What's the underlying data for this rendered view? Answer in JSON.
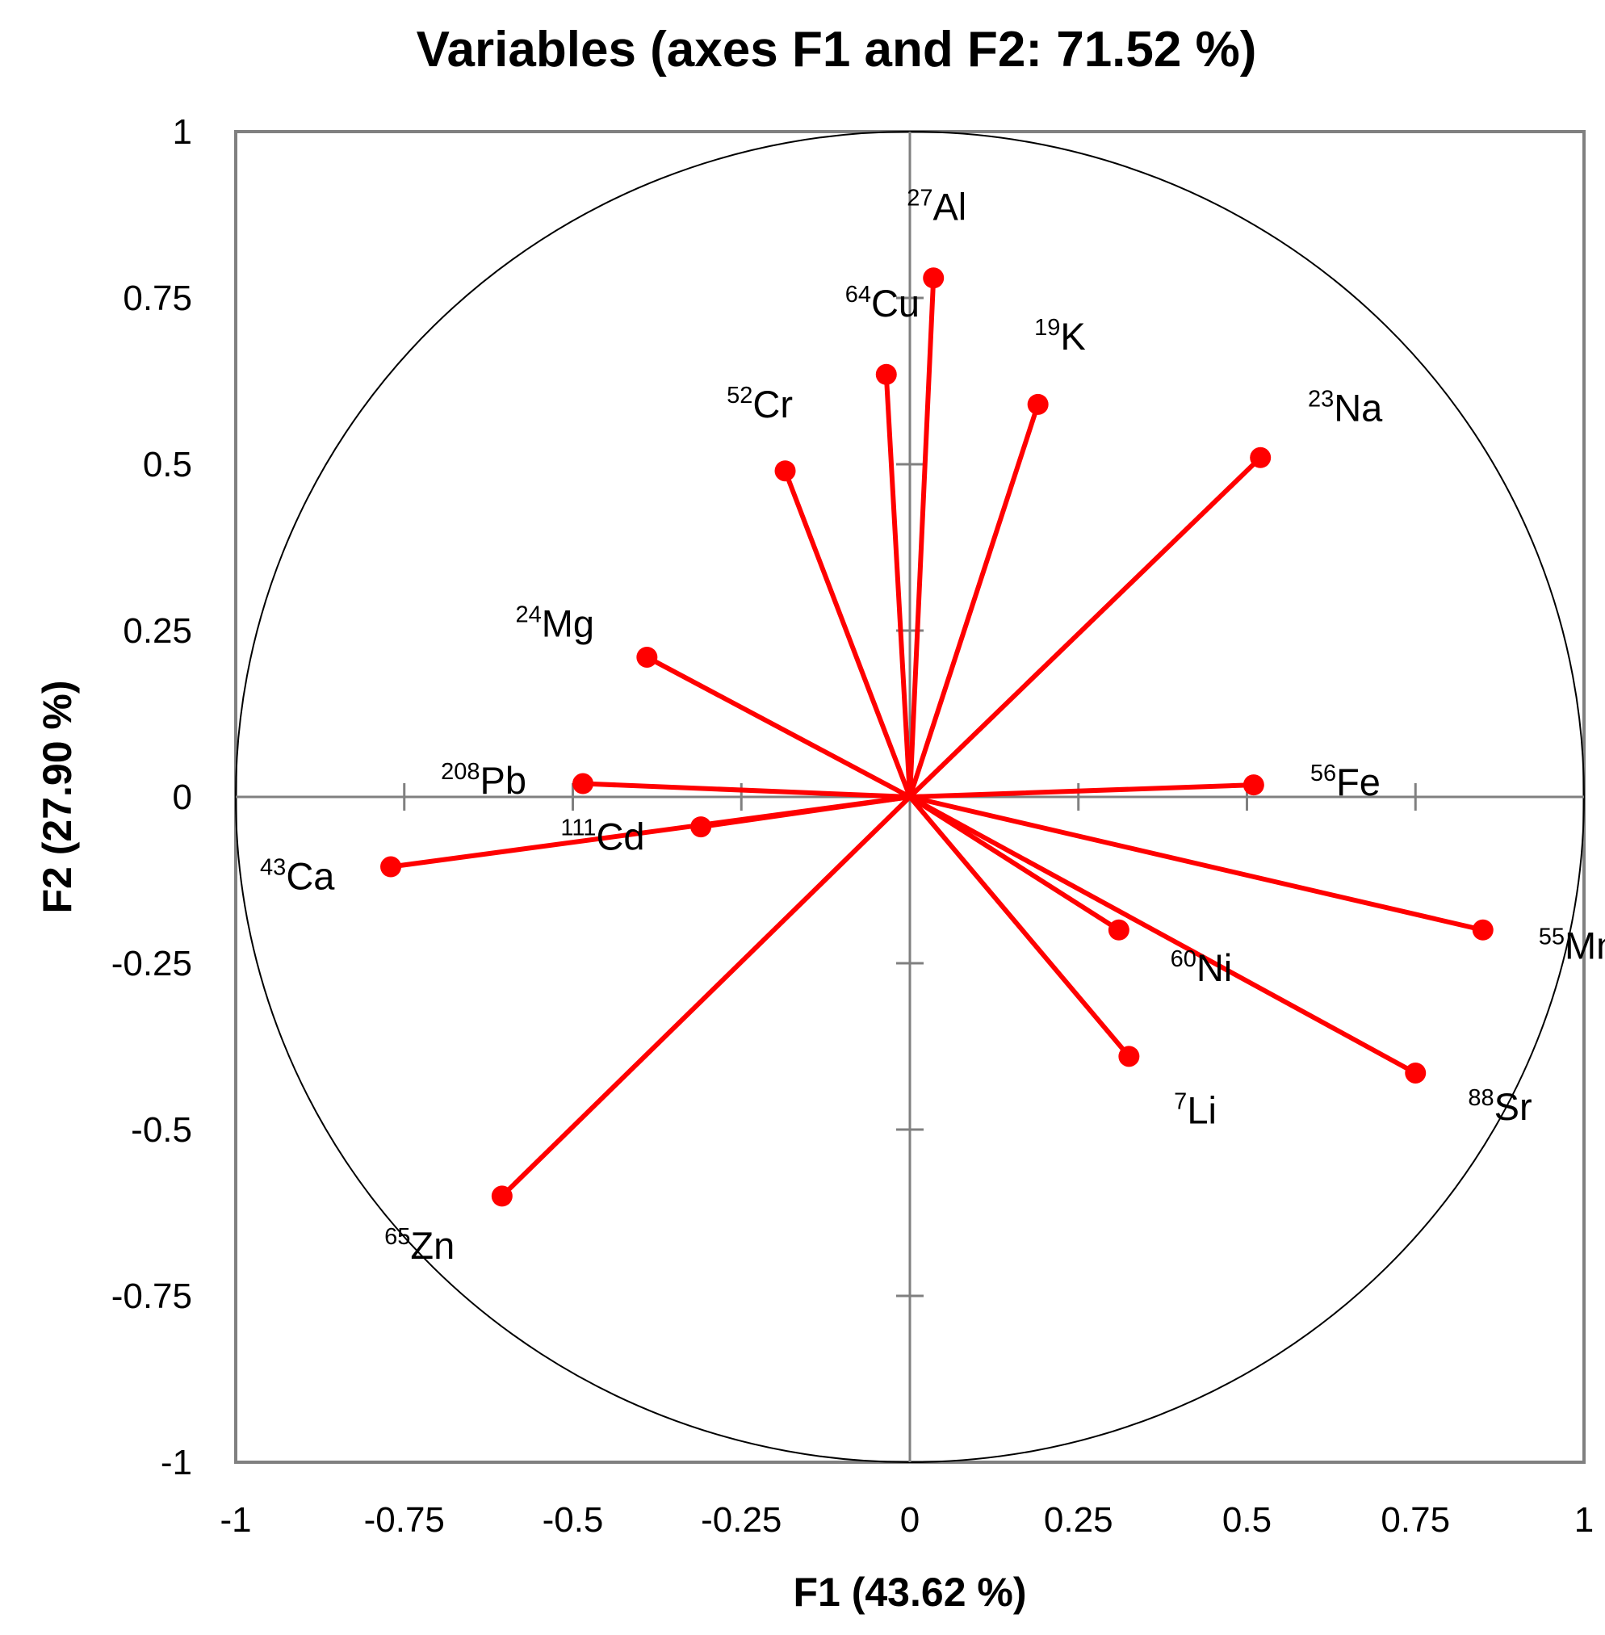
{
  "chart_data": {
    "type": "scatter",
    "subtype": "correlation-circle",
    "title": "Variables (axes F1 and F2: 71.52 %)",
    "xlabel": "F1 (43.62 %)",
    "ylabel": "F2 (27.90 %)",
    "xlim": [
      -1,
      1
    ],
    "ylim": [
      -1,
      1
    ],
    "x_ticks": [
      "-1",
      "-0.75",
      "-0.5",
      "-0.25",
      "0",
      "0.25",
      "0.5",
      "0.75",
      "1"
    ],
    "y_ticks": [
      "1",
      "0.75",
      "0.5",
      "0.25",
      "0",
      "-0.25",
      "-0.5",
      "-0.75",
      "-1"
    ],
    "unit_circle": true,
    "grid": false,
    "colors": {
      "vector": "#ff0000",
      "axes": "#808080",
      "circle": "#000000"
    },
    "points": [
      {
        "iso": "27",
        "el": "Al",
        "x": 0.035,
        "y": 0.78
      },
      {
        "iso": "64",
        "el": "Cu",
        "x": -0.035,
        "y": 0.635
      },
      {
        "iso": "19",
        "el": "K",
        "x": 0.19,
        "y": 0.59
      },
      {
        "iso": "23",
        "el": "Na",
        "x": 0.52,
        "y": 0.51
      },
      {
        "iso": "52",
        "el": "Cr",
        "x": -0.185,
        "y": 0.49
      },
      {
        "iso": "24",
        "el": "Mg",
        "x": -0.39,
        "y": 0.21
      },
      {
        "iso": "208",
        "el": "Pb",
        "x": -0.485,
        "y": 0.02
      },
      {
        "iso": "56",
        "el": "Fe",
        "x": 0.51,
        "y": 0.018
      },
      {
        "iso": "111",
        "el": "Cd",
        "x": -0.31,
        "y": -0.045
      },
      {
        "iso": "43",
        "el": "Ca",
        "x": -0.77,
        "y": -0.105
      },
      {
        "iso": "55",
        "el": "Mn",
        "x": 0.85,
        "y": -0.2
      },
      {
        "iso": "60",
        "el": "Ni",
        "x": 0.31,
        "y": -0.2
      },
      {
        "iso": "7",
        "el": "Li",
        "x": 0.325,
        "y": -0.39
      },
      {
        "iso": "88",
        "el": "Sr",
        "x": 0.75,
        "y": -0.415
      },
      {
        "iso": "65",
        "el": "Zn",
        "x": -0.605,
        "y": -0.6
      }
    ]
  }
}
